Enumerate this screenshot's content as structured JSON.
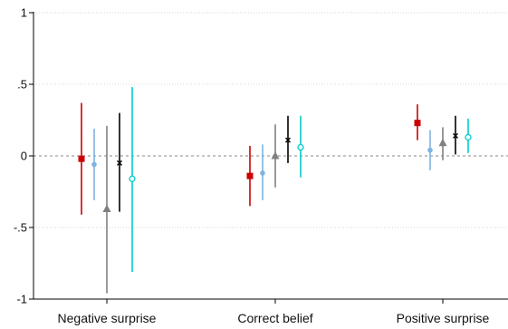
{
  "chart_data": {
    "type": "scatter",
    "subtype": "coefficient-plot-with-confidence-intervals",
    "title": "",
    "xlabel": "",
    "ylabel": "",
    "categories": [
      "Negative surprise",
      "Correct belief",
      "Positive surprise"
    ],
    "ylim": [
      -1,
      1
    ],
    "yticks": [
      {
        "value": 1,
        "label": "1"
      },
      {
        "value": 0.5,
        "label": ".5"
      },
      {
        "value": 0,
        "label": "0"
      },
      {
        "value": -0.5,
        "label": "-.5"
      },
      {
        "value": -1,
        "label": "-1"
      }
    ],
    "grid": true,
    "reference_line": {
      "y": 0,
      "style": "dashed",
      "color": "#888888"
    },
    "legend": "none",
    "series": [
      {
        "marker": "square",
        "color": "#cc0000",
        "filled": true,
        "points": [
          {
            "estimate": -0.02,
            "lower": -0.41,
            "upper": 0.37
          },
          {
            "estimate": -0.14,
            "lower": -0.35,
            "upper": 0.07
          },
          {
            "estimate": 0.23,
            "lower": 0.11,
            "upper": 0.36
          }
        ]
      },
      {
        "marker": "circle",
        "color": "#7fb3e0",
        "filled": true,
        "points": [
          {
            "estimate": -0.06,
            "lower": -0.31,
            "upper": 0.19
          },
          {
            "estimate": -0.12,
            "lower": -0.31,
            "upper": 0.08
          },
          {
            "estimate": 0.04,
            "lower": -0.1,
            "upper": 0.18
          }
        ]
      },
      {
        "marker": "triangle",
        "color": "#808080",
        "filled": true,
        "points": [
          {
            "estimate": -0.37,
            "lower": -0.96,
            "upper": 0.21
          },
          {
            "estimate": 0.0,
            "lower": -0.22,
            "upper": 0.22
          },
          {
            "estimate": 0.09,
            "lower": -0.03,
            "upper": 0.2
          }
        ]
      },
      {
        "marker": "x",
        "color": "#000000",
        "filled": false,
        "points": [
          {
            "estimate": -0.05,
            "lower": -0.39,
            "upper": 0.3
          },
          {
            "estimate": 0.11,
            "lower": -0.05,
            "upper": 0.28
          },
          {
            "estimate": 0.14,
            "lower": 0.01,
            "upper": 0.28
          }
        ]
      },
      {
        "marker": "hollow-circle",
        "color": "#00cccc",
        "filled": false,
        "points": [
          {
            "estimate": -0.16,
            "lower": -0.81,
            "upper": 0.48
          },
          {
            "estimate": 0.06,
            "lower": -0.15,
            "upper": 0.28
          },
          {
            "estimate": 0.13,
            "lower": 0.02,
            "upper": 0.26
          }
        ]
      }
    ]
  }
}
